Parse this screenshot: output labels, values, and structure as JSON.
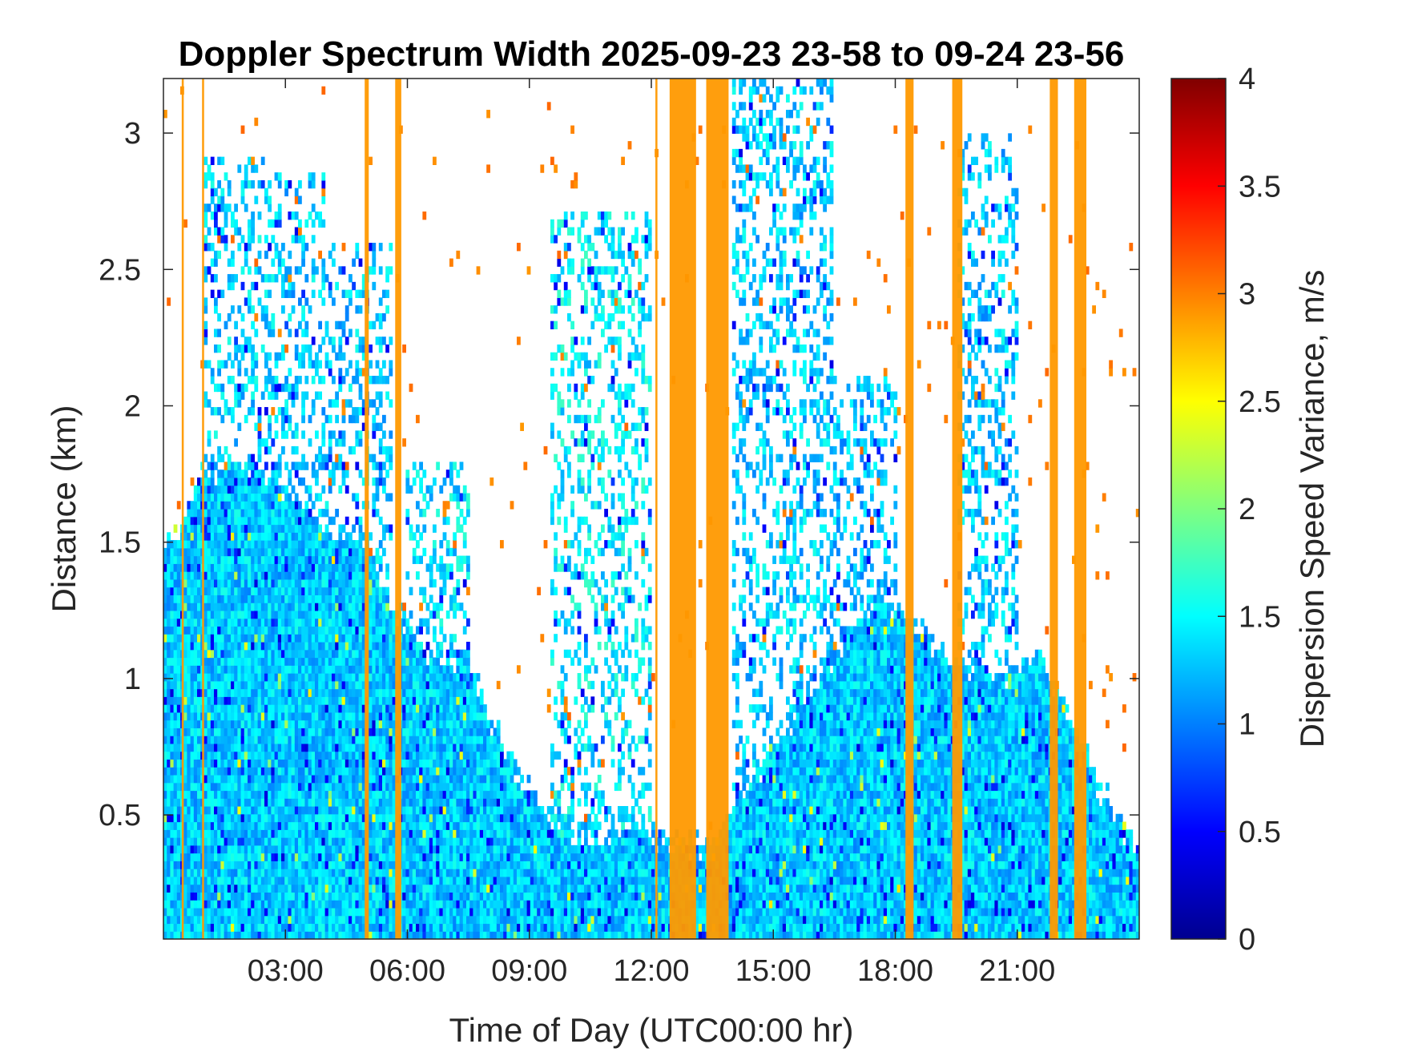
{
  "chart_data": {
    "type": "heatmap",
    "title": "Doppler Spectrum Width 2025-09-23 23-58 to 09-24 23-56",
    "xlabel": "Time of Day (UTC00:00 hr)",
    "ylabel": "Distance (km)",
    "colorbar_label": "Dispersion Speed Variance, m/s",
    "colormap": "jet",
    "xlim": [
      0,
      24
    ],
    "ylim": [
      0.045,
      3.2
    ],
    "clim": [
      0,
      4
    ],
    "xticks": [
      {
        "value": 3,
        "label": "03:00"
      },
      {
        "value": 6,
        "label": "06:00"
      },
      {
        "value": 9,
        "label": "09:00"
      },
      {
        "value": 12,
        "label": "12:00"
      },
      {
        "value": 15,
        "label": "15:00"
      },
      {
        "value": 18,
        "label": "18:00"
      },
      {
        "value": 21,
        "label": "21:00"
      }
    ],
    "yticks": [
      {
        "value": 0.5,
        "label": "0.5"
      },
      {
        "value": 1,
        "label": "1"
      },
      {
        "value": 1.5,
        "label": "1.5"
      },
      {
        "value": 2,
        "label": "2"
      },
      {
        "value": 2.5,
        "label": "2.5"
      },
      {
        "value": 3,
        "label": "3"
      }
    ],
    "colorbar_ticks": [
      {
        "value": 0,
        "label": "0"
      },
      {
        "value": 0.5,
        "label": "0.5"
      },
      {
        "value": 1,
        "label": "1"
      },
      {
        "value": 1.5,
        "label": "1.5"
      },
      {
        "value": 2,
        "label": "2"
      },
      {
        "value": 2.5,
        "label": "2.5"
      },
      {
        "value": 3,
        "label": "3"
      },
      {
        "value": 3.5,
        "label": "3.5"
      },
      {
        "value": 4,
        "label": "4"
      }
    ],
    "boundary_layer_top_km": [
      [
        0.0,
        1.45
      ],
      [
        1.0,
        1.75
      ],
      [
        2.0,
        1.8
      ],
      [
        3.0,
        1.7
      ],
      [
        4.0,
        1.55
      ],
      [
        5.0,
        1.5
      ],
      [
        5.5,
        1.3
      ],
      [
        6.5,
        1.1
      ],
      [
        7.5,
        1.05
      ],
      [
        8.5,
        0.7
      ],
      [
        9.5,
        0.5
      ],
      [
        10.5,
        0.4
      ],
      [
        11.5,
        0.45
      ],
      [
        12.5,
        0.4
      ],
      [
        13.5,
        0.4
      ],
      [
        14.5,
        0.65
      ],
      [
        15.5,
        0.85
      ],
      [
        16.5,
        1.1
      ],
      [
        17.5,
        1.3
      ],
      [
        18.5,
        1.2
      ],
      [
        19.5,
        1.05
      ],
      [
        20.5,
        1.0
      ],
      [
        21.5,
        1.1
      ],
      [
        22.5,
        0.8
      ],
      [
        23.0,
        0.6
      ],
      [
        24.0,
        0.35
      ]
    ],
    "turbulence_base_value_m_s": 1.3,
    "aloft_plumes": [
      {
        "t_start": 1.0,
        "t_end": 2.5,
        "top_km": 2.9,
        "value_m_s": 1.35
      },
      {
        "t_start": 2.5,
        "t_end": 4.0,
        "top_km": 2.85,
        "value_m_s": 1.3
      },
      {
        "t_start": 4.0,
        "t_end": 5.6,
        "top_km": 2.6,
        "value_m_s": 1.3
      },
      {
        "t_start": 6.0,
        "t_end": 7.5,
        "top_km": 1.8,
        "value_m_s": 1.4
      },
      {
        "t_start": 9.5,
        "t_end": 12.0,
        "top_km": 2.7,
        "value_m_s": 1.45
      },
      {
        "t_start": 14.0,
        "t_end": 16.5,
        "top_km": 3.2,
        "value_m_s": 1.3
      },
      {
        "t_start": 16.5,
        "t_end": 18.0,
        "top_km": 2.1,
        "value_m_s": 1.25
      },
      {
        "t_start": 19.5,
        "t_end": 21.0,
        "top_km": 3.0,
        "value_m_s": 1.3
      }
    ],
    "saturated_bands": [
      {
        "t_start": 0.45,
        "t_end": 0.5,
        "value_m_s": 3
      },
      {
        "t_start": 0.95,
        "t_end": 1.0,
        "value_m_s": 3
      },
      {
        "t_start": 4.95,
        "t_end": 5.05,
        "value_m_s": 3
      },
      {
        "t_start": 5.7,
        "t_end": 5.85,
        "value_m_s": 3
      },
      {
        "t_start": 12.1,
        "t_end": 12.15,
        "value_m_s": 3
      },
      {
        "t_start": 12.45,
        "t_end": 13.1,
        "value_m_s": 3
      },
      {
        "t_start": 13.35,
        "t_end": 13.9,
        "value_m_s": 3
      },
      {
        "t_start": 18.25,
        "t_end": 18.45,
        "value_m_s": 3
      },
      {
        "t_start": 19.4,
        "t_end": 19.65,
        "value_m_s": 3
      },
      {
        "t_start": 21.8,
        "t_end": 22.0,
        "value_m_s": 3
      },
      {
        "t_start": 22.4,
        "t_end": 22.7,
        "value_m_s": 3
      }
    ]
  }
}
